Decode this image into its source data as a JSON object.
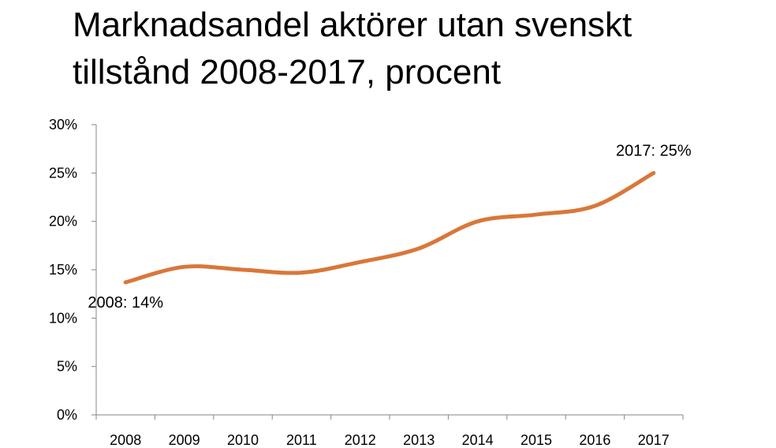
{
  "chart_title": {
    "line1": "Marknadsandel aktörer utan svenskt",
    "line2": "tillstånd 2008-2017, procent"
  },
  "chart_data": {
    "type": "line",
    "title": "Marknadsandel aktörer utan svenskt tillstånd 2008-2017, procent",
    "xlabel": "",
    "ylabel": "",
    "categories": [
      "2008",
      "2009",
      "2010",
      "2011",
      "2012",
      "2013",
      "2014",
      "2015",
      "2016",
      "2017"
    ],
    "series": [
      {
        "name": "",
        "values": [
          13.7,
          15.3,
          15.0,
          14.7,
          15.8,
          17.2,
          20.0,
          20.7,
          21.6,
          25.0
        ],
        "color": "#D9773A"
      }
    ],
    "ylim": [
      0,
      30
    ],
    "yticks": [
      0,
      5,
      10,
      15,
      20,
      25,
      30
    ],
    "ytick_labels": [
      "0%",
      "5%",
      "10%",
      "15%",
      "20%",
      "25%",
      "30%"
    ],
    "grid": false,
    "legend": "none",
    "smooth": true,
    "annotations": [
      {
        "category": "2008",
        "text": "2008: 14%",
        "position": "below"
      },
      {
        "category": "2017",
        "text": "2017: 25%",
        "position": "above"
      }
    ]
  },
  "colors": {
    "line": "#D9773A",
    "axis": "#868686"
  }
}
